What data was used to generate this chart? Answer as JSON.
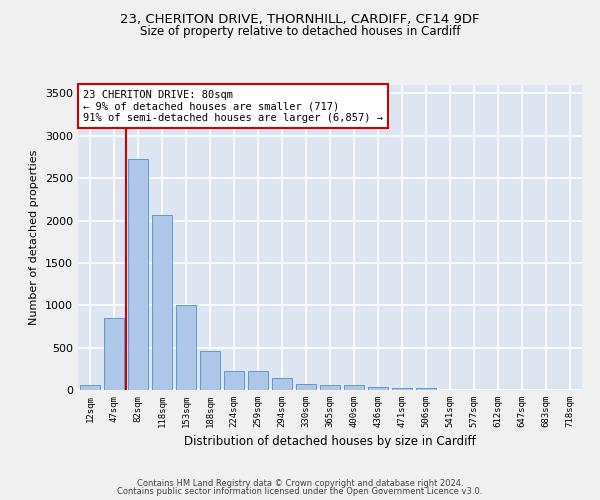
{
  "title_line1": "23, CHERITON DRIVE, THORNHILL, CARDIFF, CF14 9DF",
  "title_line2": "Size of property relative to detached houses in Cardiff",
  "xlabel": "Distribution of detached houses by size in Cardiff",
  "ylabel": "Number of detached properties",
  "bar_labels": [
    "12sqm",
    "47sqm",
    "82sqm",
    "118sqm",
    "153sqm",
    "188sqm",
    "224sqm",
    "259sqm",
    "294sqm",
    "330sqm",
    "365sqm",
    "400sqm",
    "436sqm",
    "471sqm",
    "506sqm",
    "541sqm",
    "577sqm",
    "612sqm",
    "647sqm",
    "683sqm",
    "718sqm"
  ],
  "bar_values": [
    60,
    850,
    2730,
    2060,
    1005,
    455,
    230,
    230,
    140,
    70,
    55,
    55,
    35,
    20,
    20,
    5,
    5,
    5,
    5,
    5,
    5
  ],
  "bar_color": "#aec6e8",
  "bar_edge_color": "#5b9bd5",
  "red_line_x": 1.5,
  "red_line_color": "#cc0000",
  "annotation_text": "23 CHERITON DRIVE: 80sqm\n← 9% of detached houses are smaller (717)\n91% of semi-detached houses are larger (6,857) →",
  "annotation_box_color": "#ffffff",
  "annotation_box_edge_color": "#cc0000",
  "ylim": [
    0,
    3600
  ],
  "yticks": [
    0,
    500,
    1000,
    1500,
    2000,
    2500,
    3000,
    3500
  ],
  "background_color": "#dde5f0",
  "grid_color": "#ffffff",
  "fig_background": "#f0f0f0",
  "footer_line1": "Contains HM Land Registry data © Crown copyright and database right 2024.",
  "footer_line2": "Contains public sector information licensed under the Open Government Licence v3.0."
}
